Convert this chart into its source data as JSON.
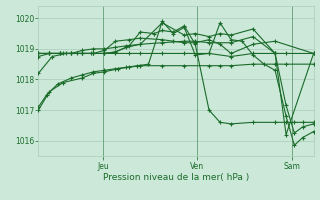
{
  "title": "",
  "xlabel": "Pression niveau de la mer( hPa )",
  "ylabel": "",
  "bg_color": "#cce8d8",
  "grid_color": "#aaccbb",
  "line_color": "#1a6b2a",
  "ylim": [
    1015.5,
    1020.4
  ],
  "yticks": [
    1016,
    1017,
    1018,
    1019,
    1020
  ],
  "day_labels": [
    "Jeu",
    "Ven",
    "Sam"
  ],
  "day_positions": [
    0.235,
    0.575,
    0.92
  ],
  "series": [
    {
      "x": [
        0.0,
        0.03,
        0.07,
        0.12,
        0.16,
        0.2,
        0.24,
        0.28,
        0.32,
        0.36,
        0.4,
        0.45,
        0.49,
        0.53,
        0.57,
        0.62,
        0.66,
        0.7,
        0.74,
        0.78,
        0.82,
        0.86,
        0.9,
        0.93,
        0.96,
        1.0
      ],
      "y": [
        1017.1,
        1017.5,
        1017.85,
        1018.05,
        1018.15,
        1018.25,
        1018.3,
        1018.35,
        1018.4,
        1018.45,
        1018.5,
        1019.9,
        1019.5,
        1019.7,
        1018.8,
        1018.85,
        1019.85,
        1019.3,
        1019.25,
        1018.8,
        1018.5,
        1018.3,
        1016.8,
        1015.85,
        1016.1,
        1016.3
      ]
    },
    {
      "x": [
        0.0,
        0.04,
        0.08,
        0.12,
        0.16,
        0.2,
        0.24,
        0.28,
        0.32,
        0.37,
        0.45,
        0.53,
        0.57,
        0.62,
        0.7,
        0.78,
        0.86,
        0.9,
        1.0
      ],
      "y": [
        1018.85,
        1018.85,
        1018.85,
        1018.85,
        1018.85,
        1018.85,
        1018.85,
        1018.9,
        1019.05,
        1019.15,
        1019.2,
        1019.25,
        1019.25,
        1019.2,
        1019.2,
        1019.4,
        1018.85,
        1018.85,
        1018.85
      ]
    },
    {
      "x": [
        0.0,
        0.04,
        0.08,
        0.12,
        0.16,
        0.2,
        0.24,
        0.28,
        0.32,
        0.37,
        0.45,
        0.53,
        0.57,
        0.62,
        0.66,
        0.7,
        0.78,
        0.86,
        0.9,
        0.93,
        0.96,
        1.0
      ],
      "y": [
        1018.85,
        1018.85,
        1018.85,
        1018.85,
        1018.95,
        1019.0,
        1019.0,
        1019.05,
        1019.1,
        1019.15,
        1019.85,
        1019.45,
        1019.5,
        1019.4,
        1019.5,
        1019.45,
        1019.65,
        1018.85,
        1017.15,
        1016.25,
        1016.45,
        1016.55
      ]
    },
    {
      "x": [
        0.0,
        0.04,
        0.09,
        0.14,
        0.19,
        0.24,
        0.28,
        0.33,
        0.37,
        0.42,
        0.45,
        0.49,
        0.53,
        0.57,
        0.62,
        0.66,
        0.7,
        0.78,
        0.86,
        0.9,
        0.93,
        0.96,
        1.0
      ],
      "y": [
        1018.75,
        1018.85,
        1018.85,
        1018.85,
        1018.85,
        1018.85,
        1018.9,
        1019.1,
        1019.55,
        1019.5,
        1019.6,
        1019.55,
        1019.75,
        1019.15,
        1017.0,
        1016.6,
        1016.55,
        1016.6,
        1016.6,
        1016.6,
        1016.6,
        1016.6,
        1016.6
      ]
    },
    {
      "x": [
        0.0,
        0.05,
        0.1,
        0.16,
        0.2,
        0.24,
        0.28,
        0.33,
        0.37,
        0.45,
        0.53,
        0.62,
        0.7,
        0.78,
        0.86,
        0.9,
        1.0
      ],
      "y": [
        1018.2,
        1018.75,
        1018.85,
        1018.85,
        1018.85,
        1018.85,
        1018.85,
        1018.85,
        1018.85,
        1018.85,
        1018.85,
        1018.85,
        1018.75,
        1018.85,
        1018.85,
        1016.2,
        1018.85
      ]
    },
    {
      "x": [
        0.0,
        0.04,
        0.09,
        0.16,
        0.2,
        0.24,
        0.29,
        0.33,
        0.37,
        0.45,
        0.53,
        0.62,
        0.66,
        0.7,
        0.78,
        0.86,
        0.9,
        1.0
      ],
      "y": [
        1017.0,
        1017.6,
        1017.9,
        1018.05,
        1018.2,
        1018.25,
        1018.35,
        1018.4,
        1018.45,
        1018.45,
        1018.45,
        1018.45,
        1018.45,
        1018.45,
        1018.5,
        1018.5,
        1018.5,
        1018.5
      ]
    },
    {
      "x": [
        0.0,
        0.04,
        0.08,
        0.12,
        0.16,
        0.2,
        0.24,
        0.28,
        0.33,
        0.37,
        0.45,
        0.49,
        0.53,
        0.57,
        0.62,
        0.66,
        0.7,
        0.78,
        0.86,
        1.0
      ],
      "y": [
        1018.85,
        1018.85,
        1018.85,
        1018.85,
        1018.85,
        1018.85,
        1018.95,
        1019.25,
        1019.3,
        1019.35,
        1019.3,
        1019.25,
        1019.2,
        1019.2,
        1019.3,
        1019.15,
        1018.85,
        1019.15,
        1019.25,
        1018.85
      ]
    }
  ]
}
